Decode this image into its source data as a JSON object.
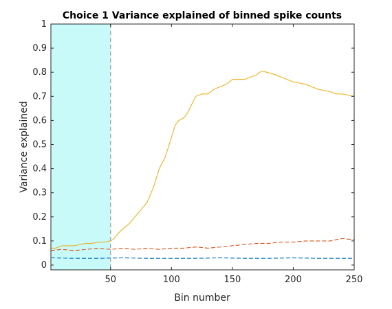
{
  "chart_data": {
    "type": "line",
    "title": "Choice 1 Variance explained of binned spike counts",
    "xlabel": "Bin number",
    "ylabel": "Variance explained",
    "xlim": [
      1,
      250
    ],
    "ylim": [
      -0.02,
      1
    ],
    "xticks": [
      50,
      100,
      150,
      200,
      250
    ],
    "yticks": [
      0,
      0.1,
      0.2,
      0.3,
      0.4,
      0.5,
      0.6,
      0.7,
      0.8,
      0.9,
      1
    ],
    "ytick_labels": [
      "0",
      "0.1",
      "0.2",
      "0.3",
      "0.4",
      "0.5",
      "0.6",
      "0.7",
      "0.8",
      "0.9",
      "1"
    ],
    "grid": false,
    "legend": "none",
    "shaded_region": {
      "x": [
        1,
        50
      ],
      "color": "#c8fafa"
    },
    "vertical_line": {
      "x": 50,
      "style": "dashed",
      "color": "#888888"
    },
    "series": [
      {
        "color": "#edb120",
        "style": "solid",
        "points": [
          [
            1,
            0.07
          ],
          [
            5,
            0.07
          ],
          [
            10,
            0.08
          ],
          [
            15,
            0.08
          ],
          [
            20,
            0.08
          ],
          [
            25,
            0.085
          ],
          [
            30,
            0.09
          ],
          [
            35,
            0.09
          ],
          [
            40,
            0.095
          ],
          [
            45,
            0.095
          ],
          [
            50,
            0.1
          ],
          [
            53,
            0.11
          ],
          [
            56,
            0.13
          ],
          [
            60,
            0.15
          ],
          [
            65,
            0.17
          ],
          [
            70,
            0.2
          ],
          [
            75,
            0.23
          ],
          [
            80,
            0.26
          ],
          [
            85,
            0.32
          ],
          [
            90,
            0.4
          ],
          [
            95,
            0.45
          ],
          [
            100,
            0.53
          ],
          [
            103,
            0.58
          ],
          [
            106,
            0.6
          ],
          [
            110,
            0.61
          ],
          [
            113,
            0.63
          ],
          [
            117,
            0.67
          ],
          [
            120,
            0.7
          ],
          [
            125,
            0.71
          ],
          [
            130,
            0.71
          ],
          [
            135,
            0.73
          ],
          [
            140,
            0.74
          ],
          [
            145,
            0.75
          ],
          [
            150,
            0.77
          ],
          [
            155,
            0.77
          ],
          [
            160,
            0.77
          ],
          [
            165,
            0.78
          ],
          [
            170,
            0.79
          ],
          [
            174,
            0.805
          ],
          [
            178,
            0.8
          ],
          [
            185,
            0.79
          ],
          [
            190,
            0.78
          ],
          [
            195,
            0.77
          ],
          [
            200,
            0.76
          ],
          [
            205,
            0.755
          ],
          [
            210,
            0.75
          ],
          [
            215,
            0.74
          ],
          [
            220,
            0.73
          ],
          [
            225,
            0.725
          ],
          [
            230,
            0.72
          ],
          [
            235,
            0.71
          ],
          [
            240,
            0.71
          ],
          [
            245,
            0.705
          ],
          [
            250,
            0.7
          ]
        ]
      },
      {
        "color": "#d95319",
        "style": "dashed",
        "points": [
          [
            1,
            0.06
          ],
          [
            10,
            0.065
          ],
          [
            20,
            0.06
          ],
          [
            30,
            0.065
          ],
          [
            40,
            0.07
          ],
          [
            50,
            0.065
          ],
          [
            60,
            0.07
          ],
          [
            70,
            0.065
          ],
          [
            80,
            0.07
          ],
          [
            90,
            0.065
          ],
          [
            100,
            0.07
          ],
          [
            110,
            0.07
          ],
          [
            120,
            0.075
          ],
          [
            130,
            0.07
          ],
          [
            140,
            0.075
          ],
          [
            150,
            0.08
          ],
          [
            160,
            0.085
          ],
          [
            170,
            0.09
          ],
          [
            180,
            0.09
          ],
          [
            190,
            0.095
          ],
          [
            200,
            0.095
          ],
          [
            210,
            0.1
          ],
          [
            220,
            0.1
          ],
          [
            230,
            0.1
          ],
          [
            240,
            0.11
          ],
          [
            250,
            0.105
          ]
        ]
      },
      {
        "color": "#0072bd",
        "style": "dashed",
        "points": [
          [
            1,
            0.03
          ],
          [
            20,
            0.028
          ],
          [
            40,
            0.028
          ],
          [
            60,
            0.03
          ],
          [
            80,
            0.028
          ],
          [
            100,
            0.028
          ],
          [
            120,
            0.028
          ],
          [
            140,
            0.03
          ],
          [
            160,
            0.028
          ],
          [
            180,
            0.028
          ],
          [
            200,
            0.03
          ],
          [
            220,
            0.028
          ],
          [
            240,
            0.028
          ],
          [
            250,
            0.028
          ]
        ]
      }
    ]
  }
}
